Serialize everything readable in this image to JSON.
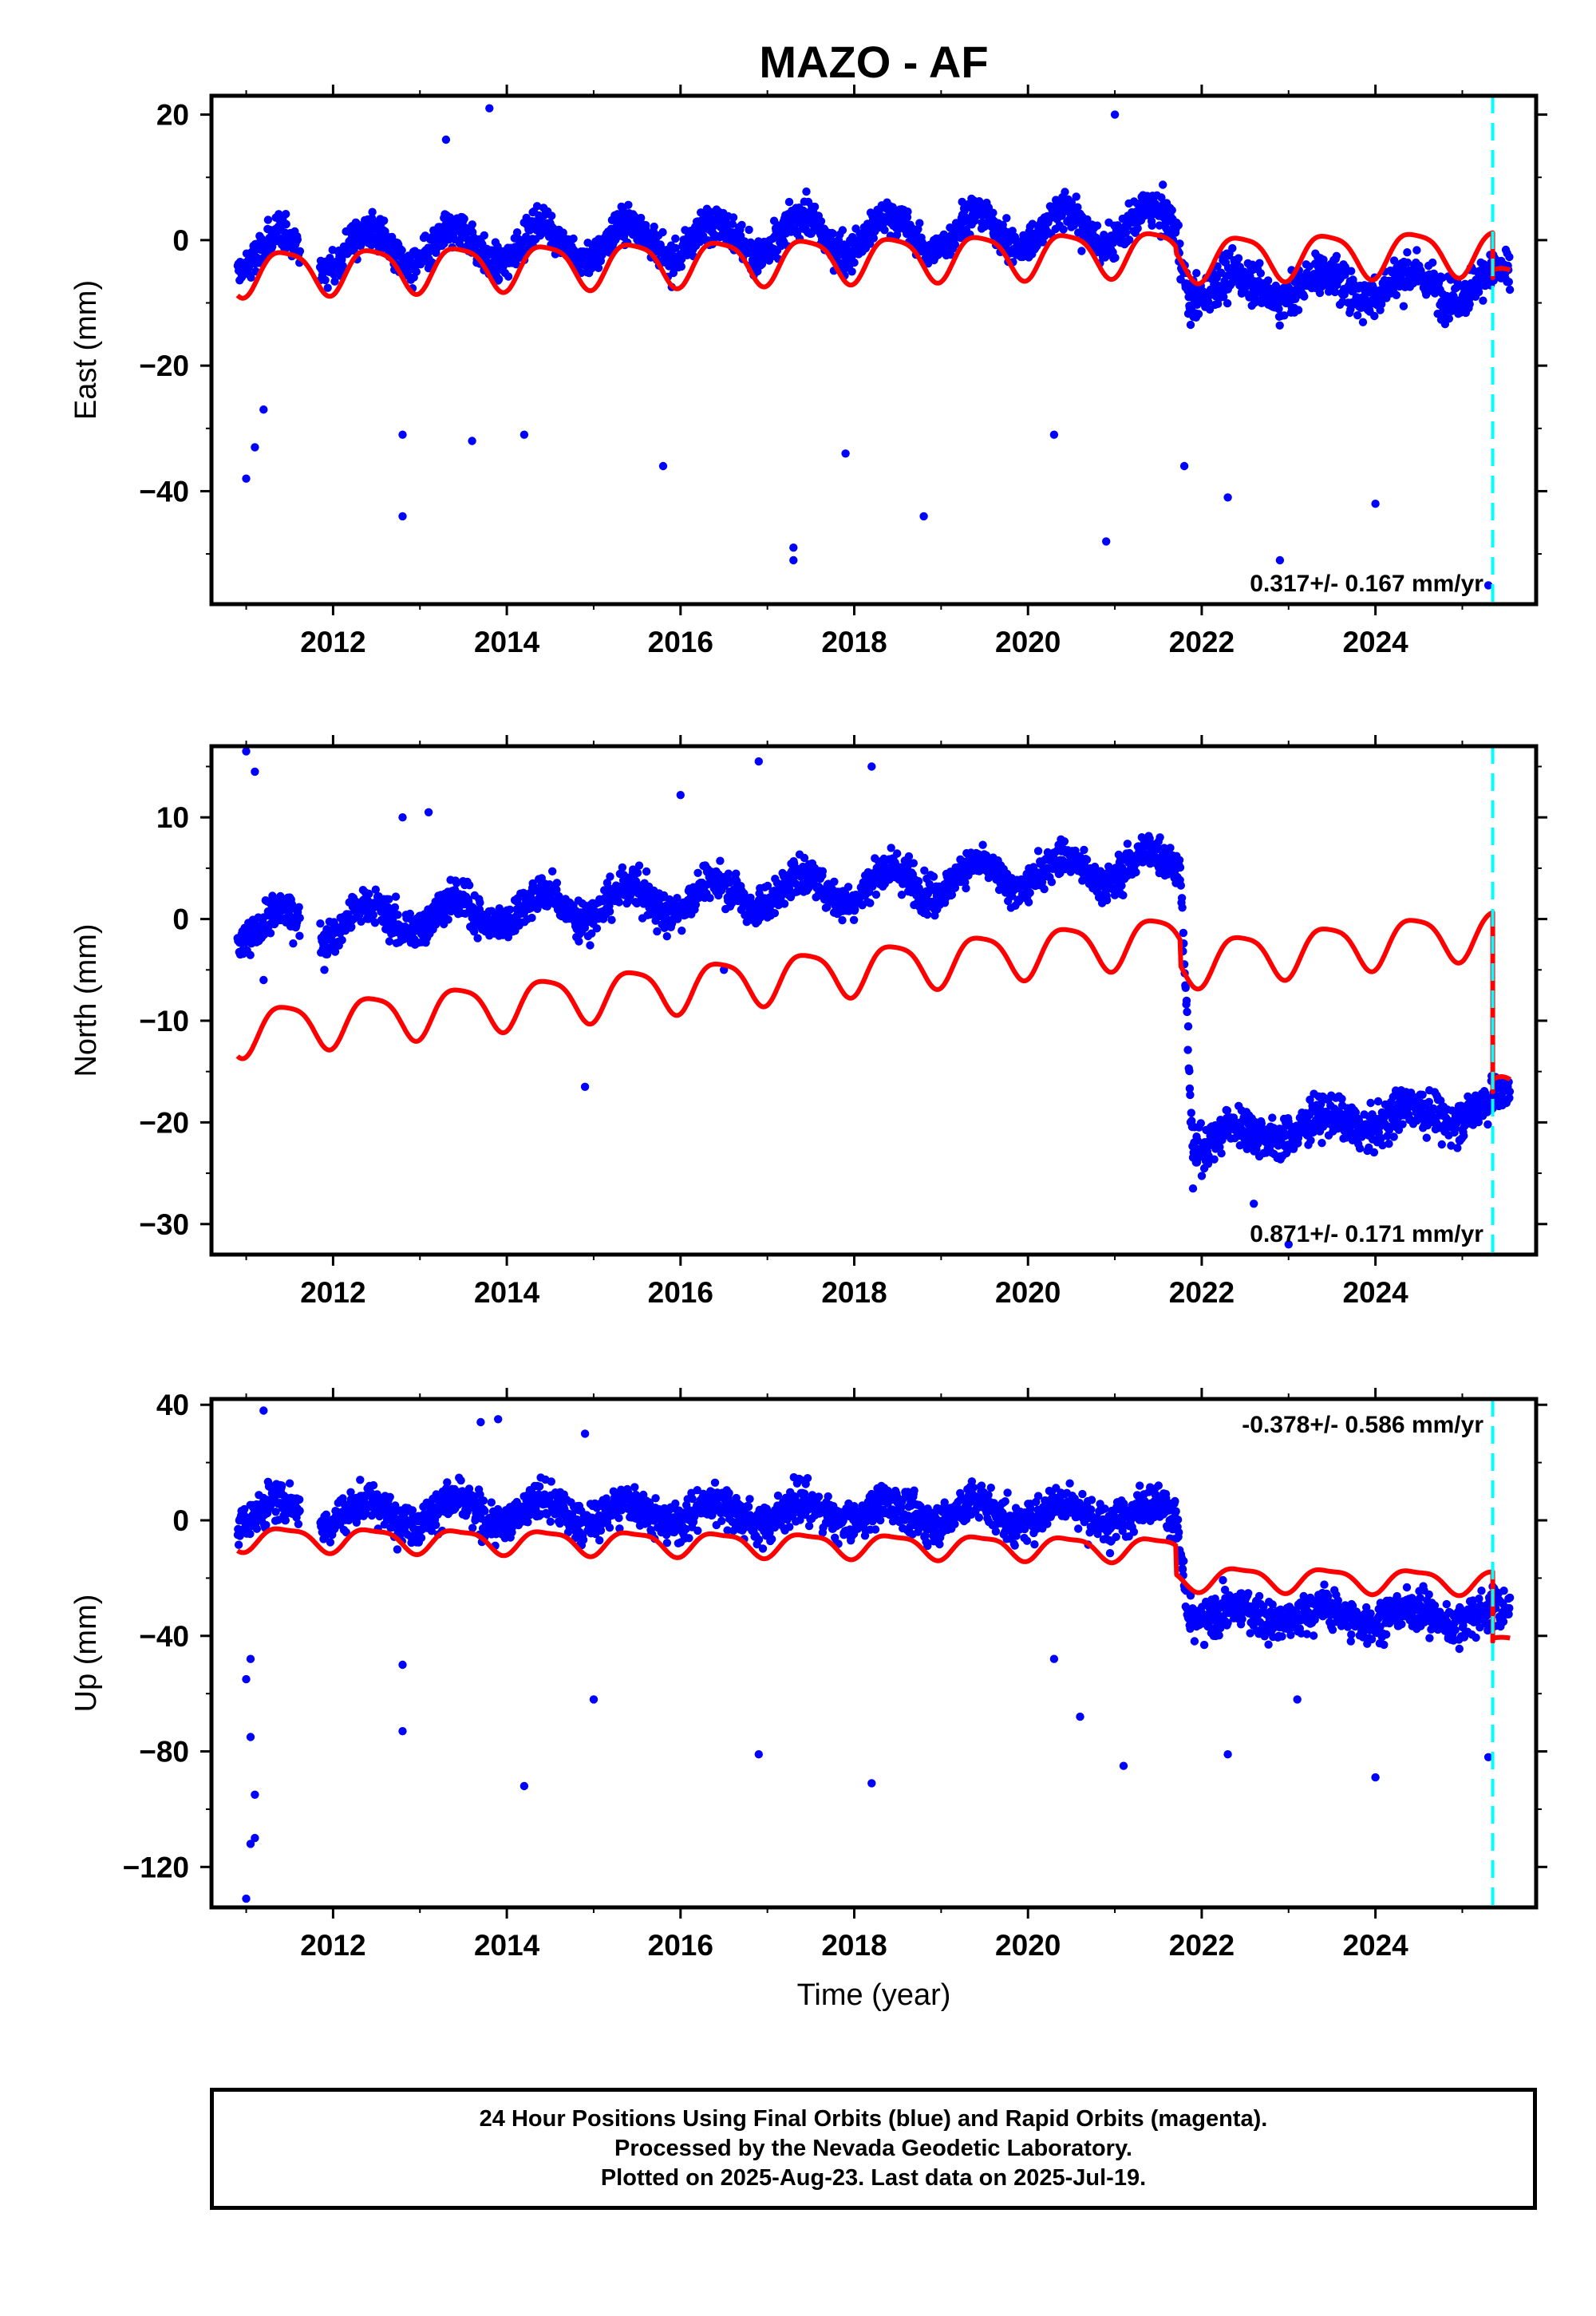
{
  "chart_data": {
    "type": "scatter",
    "title": "MAZO - AF",
    "xlabel": "Time (year)",
    "xlim": [
      2010.6,
      2025.85
    ],
    "x_ticks": [
      2012,
      2014,
      2016,
      2018,
      2020,
      2022,
      2024
    ],
    "x_tick_labels": [
      "2012",
      "2014",
      "2016",
      "2018",
      "2020",
      "2022",
      "2024"
    ],
    "data_start": 2010.9,
    "data_end": 2025.55,
    "event_line_x": 2025.35,
    "grid": false,
    "panels": [
      {
        "name": "east",
        "ylabel": "East (mm)",
        "ylim": [
          -58,
          23
        ],
        "y_ticks": [
          20,
          0,
          -20,
          -40
        ],
        "y_tick_labels": [
          "20",
          "0",
          "−20",
          "−40"
        ],
        "rate_text": "0.317+/- 0.167 mm/yr",
        "rate_position": "bottom-right",
        "obs_pre": {
          "start": -2,
          "trend": 0.4,
          "amplitude": 3,
          "noise": 2.5
        },
        "step": {
          "time": 2021.7,
          "value": -7.5,
          "recovery": 0.15,
          "noise": 3
        },
        "model": {
          "start": -5,
          "trend": 0.3,
          "amplitude": 3.5,
          "semi_amplitude": 0.8,
          "step_value": -1.0,
          "end_value": -6
        },
        "outliers": [
          [
            2012.8,
            -44
          ],
          [
            2013.3,
            16
          ],
          [
            2013.8,
            21
          ],
          [
            2014.2,
            -31
          ],
          [
            2017.3,
            -49
          ],
          [
            2017.3,
            -51
          ],
          [
            2018.8,
            -44
          ],
          [
            2020.9,
            -48
          ],
          [
            2021.0,
            20
          ],
          [
            2022.3,
            -41
          ],
          [
            2022.9,
            -51
          ],
          [
            2024.0,
            -42
          ],
          [
            2025.3,
            -55
          ],
          [
            2011.0,
            -38
          ],
          [
            2011.1,
            -33
          ],
          [
            2011.2,
            -27
          ],
          [
            2012.8,
            -31
          ],
          [
            2013.6,
            -32
          ],
          [
            2015.8,
            -36
          ],
          [
            2017.9,
            -34
          ],
          [
            2020.3,
            -31
          ],
          [
            2021.8,
            -36
          ]
        ]
      },
      {
        "name": "north",
        "ylabel": "North (mm)",
        "ylim": [
          -33,
          17
        ],
        "y_ticks": [
          10,
          0,
          -10,
          -20,
          -30
        ],
        "y_tick_labels": [
          "10",
          "0",
          "−10",
          "−20",
          "−30"
        ],
        "rate_text": "0.871+/- 0.171 mm/yr",
        "rate_position": "bottom-right",
        "obs_pre": {
          "start": -1,
          "trend": 0.6,
          "amplitude": 1.5,
          "noise": 1.6
        },
        "step": {
          "time": 2021.75,
          "value": -22,
          "recovery": 1.0,
          "noise": 1.8
        },
        "model": {
          "start": -11,
          "trend": 0.85,
          "amplitude": 2.3,
          "semi_amplitude": 0.5,
          "step_value": -2.5,
          "end_value": -17
        },
        "outliers": [
          [
            2011.0,
            16.5
          ],
          [
            2011.1,
            14.5
          ],
          [
            2012.8,
            10
          ],
          [
            2013.1,
            10.5
          ],
          [
            2014.9,
            -16.5
          ],
          [
            2016.9,
            15.5
          ],
          [
            2018.2,
            15
          ],
          [
            2016.0,
            12.2
          ],
          [
            2022.6,
            -28
          ],
          [
            2023.0,
            -32
          ],
          [
            2021.9,
            -26.5
          ],
          [
            2011.2,
            -6
          ],
          [
            2011.9,
            -5
          ],
          [
            2016.5,
            -5
          ]
        ]
      },
      {
        "name": "up",
        "ylabel": "Up (mm)",
        "ylim": [
          -134,
          42
        ],
        "y_ticks": [
          40,
          0,
          -40,
          -80,
          -120
        ],
        "y_tick_labels": [
          "40",
          "0",
          "−40",
          "−80",
          "−120"
        ],
        "rate_text": "-0.378+/- 0.586 mm/yr",
        "rate_position": "top-right",
        "obs_pre": {
          "start": 3,
          "trend": -0.05,
          "amplitude": 4,
          "noise": 6
        },
        "step": {
          "time": 2021.7,
          "value": -33,
          "recovery": 0.0,
          "noise": 6
        },
        "model": {
          "start": -6,
          "trend": -0.35,
          "amplitude": 4,
          "semi_amplitude": 1.2,
          "step_value": -10,
          "end_value": -42
        },
        "outliers": [
          [
            2011.0,
            -131
          ],
          [
            2011.05,
            -112
          ],
          [
            2011.1,
            -110
          ],
          [
            2011.1,
            -95
          ],
          [
            2011.05,
            -75
          ],
          [
            2011.2,
            38
          ],
          [
            2012.8,
            -73
          ],
          [
            2014.2,
            -92
          ],
          [
            2013.9,
            35
          ],
          [
            2013.7,
            34
          ],
          [
            2014.9,
            30
          ],
          [
            2016.9,
            -81
          ],
          [
            2018.2,
            -91
          ],
          [
            2020.6,
            -68
          ],
          [
            2021.1,
            -85
          ],
          [
            2022.3,
            -81
          ],
          [
            2024.0,
            -89
          ],
          [
            2025.3,
            -82
          ],
          [
            2011.0,
            -55
          ],
          [
            2011.05,
            -48
          ],
          [
            2012.8,
            -50
          ],
          [
            2015.0,
            -62
          ],
          [
            2020.3,
            -48
          ],
          [
            2023.1,
            -62
          ]
        ]
      }
    ],
    "series": [
      {
        "name": "Final Orbits",
        "color": "#0000ff"
      },
      {
        "name": "Model",
        "color": "#ff0000"
      },
      {
        "name": "Event",
        "color": "#00ffff"
      }
    ]
  },
  "footer": {
    "line1": "24 Hour Positions Using Final Orbits (blue) and Rapid Orbits (magenta).",
    "line2": "Processed by the Nevada Geodetic Laboratory.",
    "line3": "Plotted on 2025-Aug-23. Last data on 2025-Jul-19."
  }
}
